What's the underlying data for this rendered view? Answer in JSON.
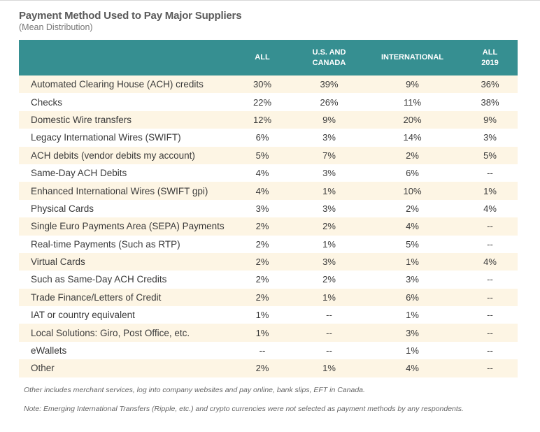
{
  "title": "Payment Method Used to Pay Major Suppliers",
  "subtitle": "(Mean Distribution)",
  "table": {
    "headers": [
      "",
      "ALL",
      "U.S. AND CANADA",
      "INTERNATIONAL",
      "ALL 2019"
    ],
    "header_2019_line1": "ALL",
    "header_2019_line2": "2019",
    "rows": [
      [
        "Automated Clearing House (ACH) credits",
        "30%",
        "39%",
        "9%",
        "36%"
      ],
      [
        "Checks",
        "22%",
        "26%",
        "11%",
        "38%"
      ],
      [
        "Domestic Wire transfers",
        "12%",
        "9%",
        "20%",
        "9%"
      ],
      [
        "Legacy International Wires (SWIFT)",
        "6%",
        "3%",
        "14%",
        "3%"
      ],
      [
        "ACH debits (vendor debits my account)",
        "5%",
        "7%",
        "2%",
        "5%"
      ],
      [
        "Same-Day ACH Debits",
        "4%",
        "3%",
        "6%",
        "--"
      ],
      [
        "Enhanced International Wires (SWIFT gpi)",
        "4%",
        "1%",
        "10%",
        "1%"
      ],
      [
        "Physical Cards",
        "3%",
        "3%",
        "2%",
        "4%"
      ],
      [
        "Single Euro Payments Area (SEPA) Payments",
        "2%",
        "2%",
        "4%",
        "--"
      ],
      [
        "Real-time Payments (Such as RTP)",
        "2%",
        "1%",
        "5%",
        "--"
      ],
      [
        "Virtual Cards",
        "2%",
        "3%",
        "1%",
        "4%"
      ],
      [
        "Such as Same-Day ACH Credits",
        "2%",
        "2%",
        "3%",
        "--"
      ],
      [
        "Trade Finance/Letters of Credit",
        "2%",
        "1%",
        "6%",
        "--"
      ],
      [
        "IAT or country equivalent",
        "1%",
        "--",
        "1%",
        "--"
      ],
      [
        "Local Solutions: Giro, Post Office, etc.",
        "1%",
        "--",
        "3%",
        "--"
      ],
      [
        "eWallets",
        "--",
        "--",
        "1%",
        "--"
      ],
      [
        "Other",
        "2%",
        "1%",
        "4%",
        "--"
      ]
    ]
  },
  "notes": [
    "Other includes merchant services, log into company websites and pay online, bank slips, EFT in Canada.",
    "Note: Emerging International Transfers (Ripple, etc.) and crypto currencies were not selected as payment methods by any respondents."
  ],
  "colors": {
    "header_bg": "#368f91",
    "row_alt_bg": "#fdf5e4"
  }
}
